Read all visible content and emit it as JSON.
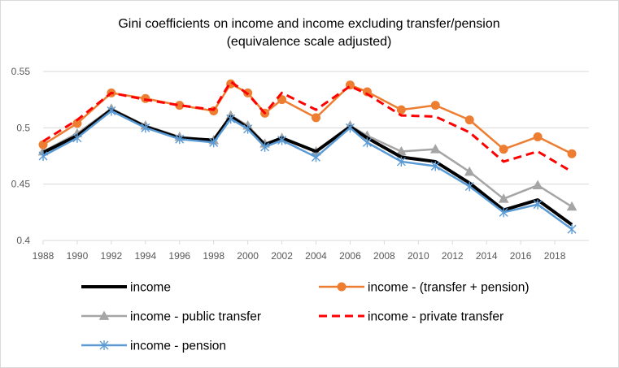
{
  "chart_data": {
    "type": "line",
    "title": [
      "Gini coefficients on income and income excluding transfer/pension",
      "(equivalence scale adjusted)"
    ],
    "xlabel": "",
    "ylabel": "",
    "xlim": [
      1988,
      2020
    ],
    "ylim": [
      0.4,
      0.55
    ],
    "x_ticks": [
      "1988",
      "1990",
      "1992",
      "1994",
      "1996",
      "1998",
      "2000",
      "2002",
      "2004",
      "2006",
      "2008",
      "2010",
      "2012",
      "2014",
      "2016",
      "2018"
    ],
    "y_ticks": [
      "0.4",
      "0.45",
      "0.5",
      "0.55"
    ],
    "grid": true,
    "legend_position": "bottom",
    "series": [
      {
        "name": "income",
        "color": "#000000",
        "style": "solid-thick",
        "marker": "none",
        "x": [
          1988,
          1990,
          1992,
          1994,
          1996,
          1998,
          1999,
          2000,
          2001,
          2002,
          2004,
          2006,
          2007,
          2009,
          2011,
          2013,
          2015,
          2017,
          2019
        ],
        "values": [
          0.478,
          0.493,
          0.516,
          0.501,
          0.491,
          0.489,
          0.51,
          0.5,
          0.485,
          0.491,
          0.479,
          0.501,
          0.491,
          0.474,
          0.47,
          0.451,
          0.427,
          0.436,
          0.414
        ]
      },
      {
        "name": "income - (transfer + pension)",
        "color": "#ed7d31",
        "style": "solid",
        "marker": "circle",
        "x": [
          1988,
          1990,
          1992,
          1994,
          1996,
          1998,
          1999,
          2000,
          2001,
          2002,
          2004,
          2006,
          2007,
          2009,
          2011,
          2013,
          2015,
          2017,
          2019
        ],
        "values": [
          0.485,
          0.504,
          0.531,
          0.526,
          0.52,
          0.515,
          0.539,
          0.531,
          0.513,
          0.525,
          0.509,
          0.538,
          0.532,
          0.516,
          0.52,
          0.507,
          0.481,
          0.492,
          0.477
        ]
      },
      {
        "name": "income - public transfer",
        "color": "#a5a5a5",
        "style": "solid",
        "marker": "triangle",
        "x": [
          1988,
          1990,
          1992,
          1994,
          1996,
          1998,
          1999,
          2000,
          2001,
          2002,
          2004,
          2006,
          2007,
          2009,
          2011,
          2013,
          2015,
          2017,
          2019
        ],
        "values": [
          0.479,
          0.495,
          0.517,
          0.502,
          0.492,
          0.489,
          0.511,
          0.502,
          0.486,
          0.491,
          0.479,
          0.502,
          0.493,
          0.479,
          0.481,
          0.461,
          0.437,
          0.449,
          0.43
        ]
      },
      {
        "name": "income - private transfer",
        "color": "#ff0000",
        "style": "dashed",
        "marker": "none",
        "x": [
          1988,
          1990,
          1992,
          1994,
          1996,
          1998,
          1999,
          2000,
          2001,
          2002,
          2004,
          2006,
          2007,
          2009,
          2011,
          2013,
          2015,
          2017,
          2019
        ],
        "values": [
          0.488,
          0.507,
          0.531,
          0.525,
          0.52,
          0.516,
          0.541,
          0.53,
          0.513,
          0.531,
          0.516,
          0.537,
          0.53,
          0.511,
          0.51,
          0.496,
          0.47,
          0.479,
          0.461
        ]
      },
      {
        "name": "income - pension",
        "color": "#5b9bd5",
        "style": "solid",
        "marker": "asterisk",
        "x": [
          1988,
          1990,
          1992,
          1994,
          1996,
          1998,
          1999,
          2000,
          2001,
          2002,
          2004,
          2006,
          2007,
          2009,
          2011,
          2013,
          2015,
          2017,
          2019
        ],
        "values": [
          0.475,
          0.491,
          0.515,
          0.5,
          0.49,
          0.487,
          0.508,
          0.499,
          0.483,
          0.489,
          0.474,
          0.5,
          0.487,
          0.47,
          0.466,
          0.448,
          0.425,
          0.432,
          0.41
        ]
      }
    ]
  }
}
